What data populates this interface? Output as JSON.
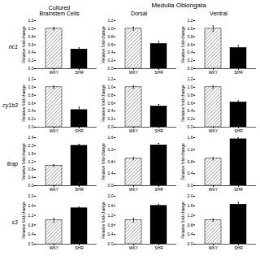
{
  "title": "Medulla Oblongata",
  "column_titles": [
    "Cultured\nBrainstem Cells",
    "Dorsal",
    "Ventral"
  ],
  "row_titles": [
    "nc1",
    "cy1b3",
    "ltrap",
    "s3"
  ],
  "chart_data": [
    {
      "type": "bar",
      "categories": [
        "WKY",
        "SHR"
      ],
      "values": [
        1.0,
        0.48
      ],
      "errors": [
        0.03,
        0.04
      ],
      "colors": [
        "#ffffff",
        "#000000"
      ],
      "ylabel": "Relative fold-change",
      "ylim": [
        0.0,
        1.2
      ],
      "yticks": [
        {
          "value": 0.0,
          "label": "0.0"
        },
        0.2,
        0.4,
        0.6,
        0.8,
        {
          "value": 1.0,
          "label": "1.0"
        },
        1.2
      ]
    },
    {
      "type": "bar",
      "categories": [
        "WKY",
        "SHR"
      ],
      "values": [
        1.0,
        0.62
      ],
      "errors": [
        0.04,
        0.06
      ],
      "colors": [
        "#ffffff",
        "#000000"
      ],
      "ylabel": "Relative fold-change",
      "ylim": [
        0.0,
        1.2
      ],
      "yticks": [
        {
          "value": 0.0,
          "label": "0.0"
        },
        0.2,
        0.4,
        0.6,
        0.8,
        {
          "value": 1.0,
          "label": "1.0"
        },
        1.2
      ]
    },
    {
      "type": "bar",
      "categories": [
        "WKY",
        "SHR"
      ],
      "values": [
        1.0,
        0.52
      ],
      "errors": [
        0.07,
        0.06
      ],
      "colors": [
        "#ffffff",
        "#000000"
      ],
      "ylabel": "Relative fold-change",
      "ylim": [
        0.0,
        1.2
      ],
      "yticks": [
        {
          "value": 0.0,
          "label": "0.0"
        },
        0.2,
        0.4,
        0.6,
        0.8,
        {
          "value": 1.0,
          "label": "1.0"
        },
        1.2
      ]
    },
    {
      "type": "bar",
      "categories": [
        "WKY",
        "SHR"
      ],
      "values": [
        1.0,
        0.43
      ],
      "errors": [
        0.03,
        0.07
      ],
      "colors": [
        "#ffffff",
        "#000000"
      ],
      "ylabel": "Relative fold-change",
      "ylim": [
        0.0,
        1.2
      ],
      "yticks": [
        {
          "value": 0.0,
          "label": "0.0"
        },
        0.2,
        0.4,
        0.6,
        0.8,
        {
          "value": 1.0,
          "label": "1.0"
        },
        1.2
      ]
    },
    {
      "type": "bar",
      "categories": [
        "WKY",
        "SHR"
      ],
      "values": [
        1.0,
        0.52
      ],
      "errors": [
        0.03,
        0.05
      ],
      "colors": [
        "#ffffff",
        "#000000"
      ],
      "ylabel": "Relative fold-change",
      "ylim": [
        0.0,
        1.2
      ],
      "yticks": [
        {
          "value": 0.0,
          "label": "0.0"
        },
        0.2,
        0.4,
        0.6,
        0.8,
        {
          "value": 1.0,
          "label": "1.0"
        },
        1.2
      ]
    },
    {
      "type": "bar",
      "categories": [
        "WKY",
        "SHR"
      ],
      "values": [
        1.0,
        0.62
      ],
      "errors": [
        0.03,
        0.04
      ],
      "colors": [
        "#ffffff",
        "#000000"
      ],
      "ylabel": "Relative fold-change",
      "ylim": [
        0.0,
        1.2
      ],
      "yticks": [
        {
          "value": 0.0,
          "label": "0.0"
        },
        0.2,
        0.4,
        0.6,
        0.8,
        {
          "value": 1.0,
          "label": "1.0"
        },
        1.2
      ]
    },
    {
      "type": "bar",
      "categories": [
        "WKY",
        "SHR"
      ],
      "values": [
        1.0,
        2.0
      ],
      "errors": [
        0.05,
        0.07
      ],
      "colors": [
        "#ffffff",
        "#000000"
      ],
      "ylabel": "Relative fold-change",
      "ylim": [
        0.0,
        2.4
      ],
      "yticks": [
        {
          "value": 0.0,
          "label": "0.0"
        },
        0.4,
        0.8,
        1.2,
        1.6,
        {
          "value": 2.0,
          "label": "2.0"
        },
        2.4
      ]
    },
    {
      "type": "bar",
      "categories": [
        "WKY",
        "SHR"
      ],
      "values": [
        0.9,
        1.35
      ],
      "errors": [
        0.04,
        0.06
      ],
      "colors": [
        "#ffffff",
        "#000000"
      ],
      "ylabel": "Relative fold-change",
      "ylim": [
        0.0,
        1.6
      ],
      "yticks": [
        {
          "value": 0.0,
          "label": "0.0"
        },
        0.4,
        0.8,
        1.2,
        1.6
      ]
    },
    {
      "type": "bar",
      "categories": [
        "WKY",
        "SHR"
      ],
      "values": [
        0.9,
        1.55
      ],
      "errors": [
        0.04,
        0.05
      ],
      "colors": [
        "#ffffff",
        "#000000"
      ],
      "ylabel": "Relative fold-change",
      "ylim": [
        0.0,
        1.6
      ],
      "yticks": [
        {
          "value": 0.0,
          "label": "0.0"
        },
        0.4,
        0.8,
        1.2,
        1.6
      ]
    },
    {
      "type": "bar",
      "categories": [
        "WKY",
        "SHR"
      ],
      "values": [
        1.0,
        1.5
      ],
      "errors": [
        0.08,
        0.05
      ],
      "colors": [
        "#ffffff",
        "#000000"
      ],
      "ylabel": "Relative fold-change",
      "ylim": [
        0.0,
        2.0
      ],
      "yticks": [
        {
          "value": 0.0,
          "label": "0.0"
        },
        0.4,
        0.8,
        1.2,
        1.6,
        {
          "value": 2.0,
          "label": "2.0"
        }
      ]
    },
    {
      "type": "bar",
      "categories": [
        "WKY",
        "SHR"
      ],
      "values": [
        1.0,
        1.6
      ],
      "errors": [
        0.08,
        0.06
      ],
      "colors": [
        "#ffffff",
        "#000000"
      ],
      "ylabel": "Relative fold-change",
      "ylim": [
        0.0,
        2.0
      ],
      "yticks": [
        {
          "value": 0.0,
          "label": "0.0"
        },
        0.4,
        0.8,
        1.2,
        1.6,
        {
          "value": 2.0,
          "label": "2.0"
        }
      ]
    },
    {
      "type": "bar",
      "categories": [
        "WKY",
        "SHR"
      ],
      "values": [
        1.0,
        1.65
      ],
      "errors": [
        0.05,
        0.09
      ],
      "colors": [
        "#ffffff",
        "#000000"
      ],
      "ylabel": "Relative fold-change",
      "ylim": [
        0.0,
        2.0
      ],
      "yticks": [
        {
          "value": 0.0,
          "label": "0.0"
        },
        0.4,
        0.8,
        1.2,
        1.6,
        {
          "value": 2.0,
          "label": "2.0"
        }
      ]
    }
  ]
}
